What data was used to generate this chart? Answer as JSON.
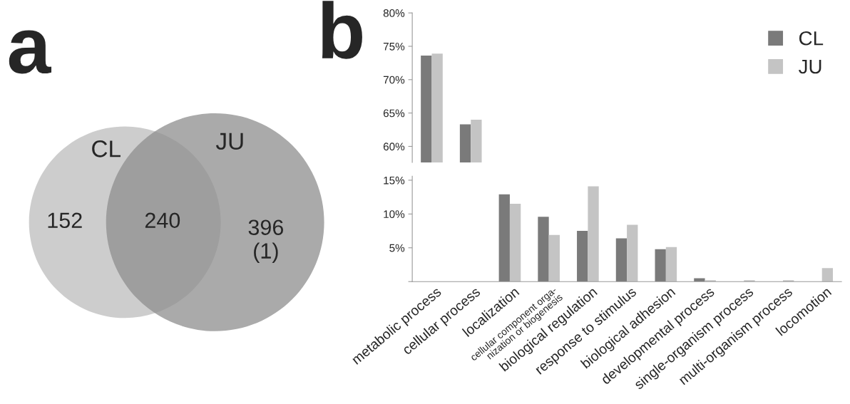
{
  "chart_data": [
    {
      "type": "other",
      "title": "a",
      "categories": [
        "CL",
        "JU"
      ],
      "colors": [
        "#c8c8c8",
        "#8e8e8e"
      ],
      "annotations": [
        "152",
        "240",
        "396\n(1)"
      ]
    },
    {
      "type": "bar",
      "title": "b",
      "categories": [
        null,
        null
      ],
      "series": [
        {
          "name": "CL",
          "color": "#7a7a7a",
          "values": [
            73.6,
            63.3
          ]
        },
        {
          "name": "JU",
          "color": "#c4c4c4",
          "values": [
            73.9,
            64.0
          ]
        }
      ],
      "ylim": [
        57.6,
        80
      ],
      "yticks": [
        {
          "value": 60,
          "label": "60%"
        },
        {
          "value": 65,
          "label": "65%"
        },
        {
          "value": 70,
          "label": "70%"
        },
        {
          "value": 75,
          "label": "75%"
        },
        {
          "value": 80,
          "label": "80%"
        }
      ],
      "tick_labels": "y",
      "legend": "top right",
      "grid": false
    },
    {
      "type": "bar",
      "categories": [
        "metabolic process",
        "cellular process",
        "localization",
        "cellular component orga-\nnization or biogenesis",
        "biological regulation",
        "response to stimulus",
        "biological adhesion",
        "developmental process",
        "single-organism process",
        "multi-organism process",
        "locomotion"
      ],
      "series": [
        {
          "color": "#7a7a7a",
          "values": [
            null,
            null,
            12.9,
            9.6,
            7.5,
            6.4,
            4.8,
            0.5,
            0,
            0,
            0
          ]
        },
        {
          "color": "#c4c4c4",
          "values": [
            null,
            null,
            11.5,
            6.9,
            14.1,
            8.4,
            5.1,
            0.2,
            0.2,
            0.2,
            2.0
          ]
        }
      ],
      "ylim": [
        0,
        15.6
      ],
      "yticks": [
        {
          "value": 0,
          "label": null
        },
        {
          "value": 5,
          "label": "5%"
        },
        {
          "value": 10,
          "label": "10%"
        },
        {
          "value": 15,
          "label": "15%"
        }
      ],
      "grid": false
    }
  ]
}
